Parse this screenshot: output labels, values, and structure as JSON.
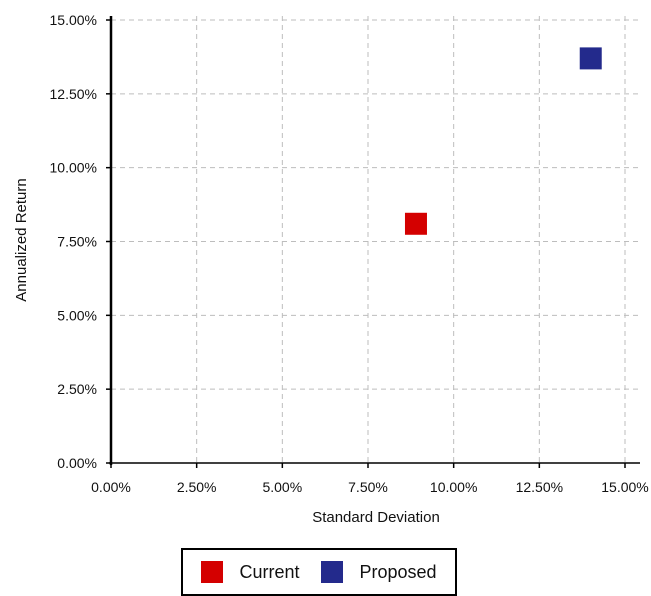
{
  "chart_data": {
    "type": "scatter",
    "xlabel": "Standard Deviation",
    "ylabel": "Annualized Return",
    "xlim": [
      0,
      15
    ],
    "ylim": [
      0,
      15
    ],
    "x_ticks": [
      "0.00%",
      "2.50%",
      "5.00%",
      "7.50%",
      "10.00%",
      "12.50%",
      "15.00%"
    ],
    "y_ticks": [
      "0.00%",
      "2.50%",
      "5.00%",
      "7.50%",
      "10.00%",
      "12.50%",
      "15.00%"
    ],
    "grid": true,
    "legend_position": "bottom",
    "series": [
      {
        "name": "Current",
        "color": "#d40000",
        "x": 8.9,
        "y": 8.1
      },
      {
        "name": "Proposed",
        "color": "#232a8c",
        "x": 14.0,
        "y": 13.7
      }
    ]
  }
}
